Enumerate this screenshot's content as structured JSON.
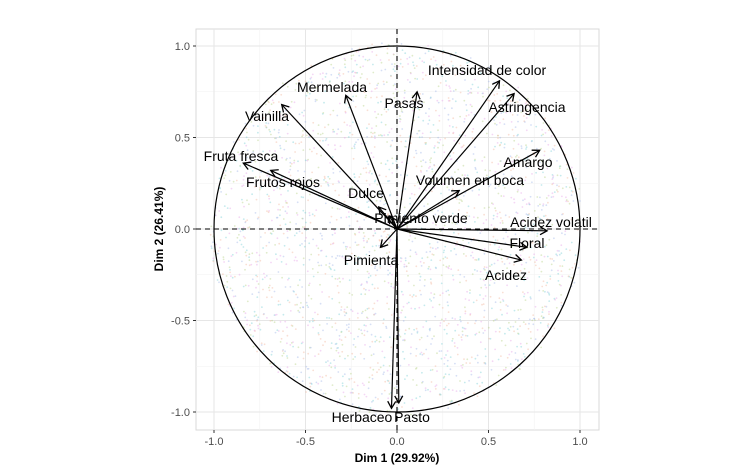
{
  "chart_data": {
    "type": "scatter",
    "subtype": "pca-correlation-circle",
    "title": "",
    "xlabel": "Dim 1 (29.92%)",
    "ylabel": "Dim 2 (26.41%)",
    "xlim": [
      -1.1,
      1.1
    ],
    "ylim": [
      -1.1,
      1.1
    ],
    "x_ticks": [
      -1.0,
      -0.5,
      0.0,
      0.5,
      1.0
    ],
    "y_ticks": [
      -1.0,
      -0.5,
      0.0,
      0.5,
      1.0
    ],
    "x_tick_labels": [
      "-1.0",
      "-0.5",
      "0.0",
      "0.5",
      "1.0"
    ],
    "y_tick_labels": [
      "1.0",
      "0.5",
      "0.0",
      "-0.5",
      "-1.0"
    ],
    "grid": true,
    "unit_circle": true,
    "reference_lines": "dashed at x=0 and y=0",
    "background_points_colors": [
      "#7fd0d6",
      "#e7a6e8",
      "#b9d28a",
      "#f2b9a0",
      "#a3b8e8"
    ],
    "variables": [
      {
        "name": "Intensidad de color",
        "x": 0.56,
        "y": 0.81
      },
      {
        "name": "Astringencia",
        "x": 0.64,
        "y": 0.74
      },
      {
        "name": "Pasas",
        "x": 0.11,
        "y": 0.75
      },
      {
        "name": "Mermelada",
        "x": -0.28,
        "y": 0.73
      },
      {
        "name": "Vainilla",
        "x": -0.63,
        "y": 0.68
      },
      {
        "name": "Fruta fresca",
        "x": -0.84,
        "y": 0.36
      },
      {
        "name": "Frutos rojos",
        "x": -0.69,
        "y": 0.32
      },
      {
        "name": "Amargo",
        "x": 0.78,
        "y": 0.43
      },
      {
        "name": "Volumen en boca",
        "x": 0.34,
        "y": 0.21
      },
      {
        "name": "Dulce",
        "x": -0.1,
        "y": 0.12
      },
      {
        "name": "Pimiento verde",
        "x": -0.04,
        "y": 0.07
      },
      {
        "name": "Acidez volatil",
        "x": 0.82,
        "y": -0.01
      },
      {
        "name": "Floral",
        "x": 0.71,
        "y": -0.1
      },
      {
        "name": "Acidez",
        "x": 0.68,
        "y": -0.17
      },
      {
        "name": "Pimienta",
        "x": -0.09,
        "y": -0.1
      },
      {
        "name": "Herbaceo",
        "x": -0.03,
        "y": -0.98
      },
      {
        "name": "Pasto",
        "x": 0.01,
        "y": -0.95
      }
    ]
  }
}
